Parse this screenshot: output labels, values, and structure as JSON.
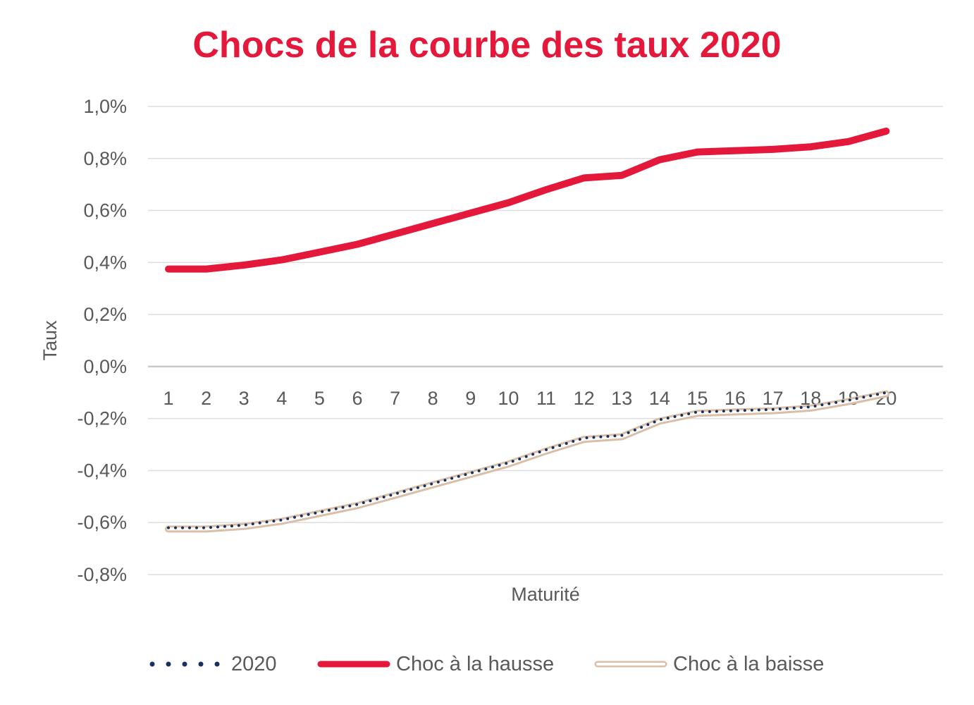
{
  "chart_data": {
    "type": "line",
    "title": "Chocs de la courbe des taux 2020",
    "xlabel": "Maturité",
    "ylabel": "Taux",
    "x": [
      1,
      2,
      3,
      4,
      5,
      6,
      7,
      8,
      9,
      10,
      11,
      12,
      13,
      14,
      15,
      16,
      17,
      18,
      19,
      20
    ],
    "x_tick_labels": [
      "1",
      "2",
      "3",
      "4",
      "5",
      "6",
      "7",
      "8",
      "9",
      "10",
      "11",
      "12",
      "13",
      "14",
      "15",
      "16",
      "17",
      "18",
      "19",
      "20"
    ],
    "ylim": [
      -0.8,
      1.0
    ],
    "y_ticks": [
      1.0,
      0.8,
      0.6,
      0.4,
      0.2,
      0.0,
      -0.2,
      -0.4,
      -0.6,
      -0.8
    ],
    "y_tick_labels": [
      "1,0%",
      "0,8%",
      "0,6%",
      "0,4%",
      "0,2%",
      "0,0%",
      "-0,2%",
      "-0,4%",
      "-0,6%",
      "-0,8%"
    ],
    "grid": true,
    "legend_position": "bottom",
    "series": [
      {
        "name": "2020",
        "style": "dotted",
        "color": "#17305e",
        "values": [
          -0.62,
          -0.62,
          -0.61,
          -0.59,
          -0.56,
          -0.53,
          -0.49,
          -0.45,
          -0.41,
          -0.37,
          -0.32,
          -0.275,
          -0.265,
          -0.205,
          -0.175,
          -0.17,
          -0.165,
          -0.155,
          -0.13,
          -0.1
        ]
      },
      {
        "name": "Choc à la hausse",
        "style": "solid-thick",
        "color": "#e4183a",
        "values": [
          0.375,
          0.375,
          0.39,
          0.41,
          0.44,
          0.47,
          0.51,
          0.55,
          0.59,
          0.63,
          0.68,
          0.725,
          0.735,
          0.795,
          0.825,
          0.83,
          0.835,
          0.845,
          0.865,
          0.905
        ]
      },
      {
        "name": "Choc à la baisse",
        "style": "double-outline",
        "color": "#d9bfa8",
        "values": [
          -0.625,
          -0.625,
          -0.615,
          -0.595,
          -0.565,
          -0.535,
          -0.495,
          -0.455,
          -0.415,
          -0.375,
          -0.325,
          -0.28,
          -0.27,
          -0.21,
          -0.18,
          -0.175,
          -0.17,
          -0.16,
          -0.135,
          -0.105
        ]
      }
    ]
  }
}
